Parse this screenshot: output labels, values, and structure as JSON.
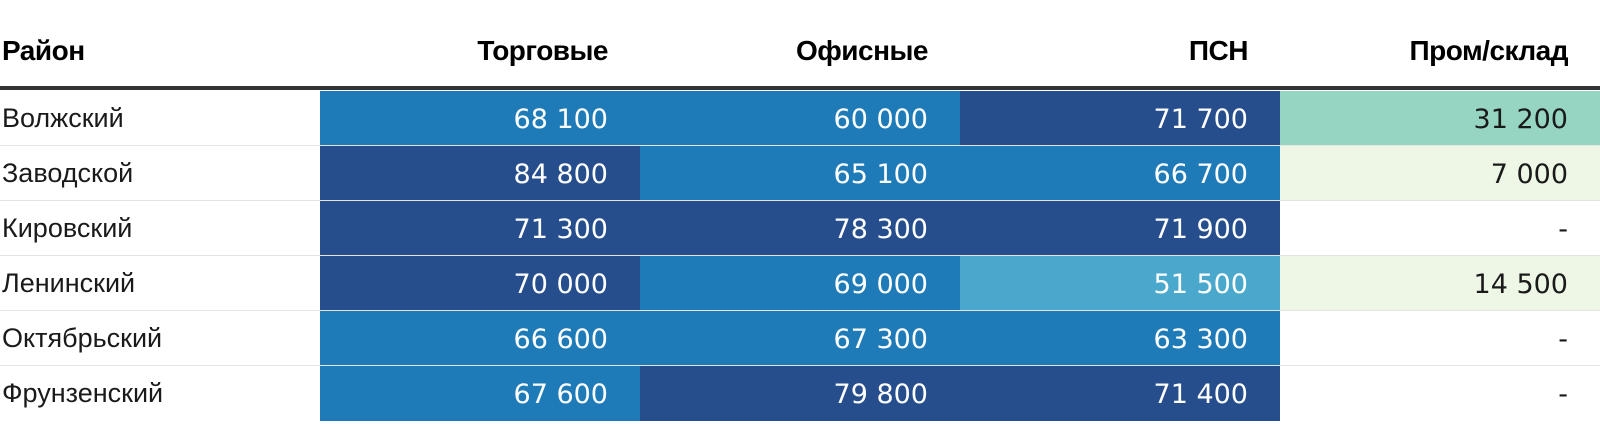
{
  "chart_data": {
    "type": "heatmap",
    "columns": [
      "Район",
      "Торговые",
      "Офисные",
      "ПСН",
      "Пром/склад"
    ],
    "rows": [
      {
        "district": "Волжский",
        "values": [
          68100,
          60000,
          71700,
          31200
        ],
        "labels": [
          "68 100",
          "60 000",
          "71 700",
          "31 200"
        ]
      },
      {
        "district": "Заводской",
        "values": [
          84800,
          65100,
          66700,
          7000
        ],
        "labels": [
          "84 800",
          "65 100",
          "66 700",
          "7 000"
        ]
      },
      {
        "district": "Кировский",
        "values": [
          71300,
          78300,
          71900,
          null
        ],
        "labels": [
          "71 300",
          "78 300",
          "71 900",
          "-"
        ]
      },
      {
        "district": "Ленинский",
        "values": [
          70000,
          69000,
          51500,
          14500
        ],
        "labels": [
          "70 000",
          "69 000",
          "51 500",
          "14 500"
        ]
      },
      {
        "district": "Октябрьский",
        "values": [
          66600,
          67300,
          63300,
          null
        ],
        "labels": [
          "66 600",
          "67 300",
          "63 300",
          "-"
        ]
      },
      {
        "district": "Фрунзенский",
        "values": [
          67600,
          79800,
          71400,
          null
        ],
        "labels": [
          "67 600",
          "79 800",
          "71 400",
          "-"
        ]
      }
    ],
    "color_scale": {
      "bins": [
        {
          "min": 70000,
          "color": "#264d8c",
          "text": "#ffffff"
        },
        {
          "min": 55000,
          "color": "#1f7bb8",
          "text": "#ffffff"
        },
        {
          "min": 40000,
          "color": "#4aa8cc",
          "text": "#ffffff"
        },
        {
          "min": 20000,
          "color": "#96d5c2",
          "text": "#1a1a1a"
        },
        {
          "min": 1,
          "color": "#eef7e6",
          "text": "#1a1a1a"
        }
      ],
      "empty_color": "#ffffff",
      "empty_text": "#1a1a1a"
    }
  }
}
